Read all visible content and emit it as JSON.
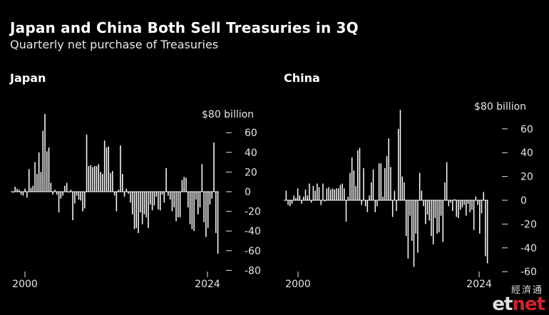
{
  "chart_data": [
    {
      "type": "bar",
      "panel_title": "Japan",
      "unit_label": "$80 billion",
      "y_ticks": [
        "60",
        "40",
        "20",
        "0",
        "-20",
        "-40",
        "-60",
        "-80"
      ],
      "ylim": [
        -80,
        80
      ],
      "x_tick_labels": [
        "2000",
        "2024"
      ],
      "x_range": [
        "2000 Q1",
        "2024 Q3"
      ],
      "values": [
        -1,
        5,
        3,
        2,
        -3,
        -4,
        3,
        -6,
        23,
        4,
        6,
        30,
        18,
        40,
        20,
        62,
        79,
        41,
        45,
        9,
        -3,
        2,
        -3,
        -21,
        -7,
        -4,
        6,
        9,
        -1,
        2,
        -29,
        -12,
        -4,
        -8,
        -9,
        -20,
        -17,
        58,
        26,
        27,
        25,
        26,
        26,
        28,
        20,
        18,
        52,
        45,
        46,
        19,
        21,
        -4,
        -20,
        2,
        47,
        18,
        -5,
        3,
        -2,
        -11,
        -23,
        -38,
        -37,
        -42,
        -21,
        -33,
        -23,
        -26,
        -37,
        -13,
        -19,
        -14,
        -5,
        -18,
        -19,
        -3,
        -11,
        24,
        -4,
        -8,
        -20,
        -16,
        -30,
        -26,
        -26,
        12,
        15,
        14,
        -16,
        -33,
        -38,
        -40,
        -8,
        -23,
        -16,
        28,
        -31,
        -46,
        -37,
        -13,
        -7,
        50,
        -42,
        -63
      ]
    },
    {
      "type": "bar",
      "panel_title": "China",
      "unit_label": "$80 billion",
      "y_ticks": [
        "60",
        "40",
        "20",
        "0",
        "-20",
        "-40",
        "-60"
      ],
      "ylim": [
        -62,
        80
      ],
      "x_tick_labels": [
        "2000",
        "2024"
      ],
      "x_range": [
        "2000 Q1",
        "2024 Q3"
      ],
      "values": [
        8,
        -4,
        -5,
        -3,
        4,
        2,
        10,
        4,
        -3,
        3,
        9,
        4,
        14,
        -2,
        12,
        8,
        14,
        11,
        -4,
        14,
        -1,
        10,
        11,
        9,
        10,
        9,
        10,
        10,
        13,
        14,
        10,
        -18,
        3,
        23,
        36,
        25,
        12,
        42,
        44,
        -4,
        27,
        -5,
        -10,
        4,
        15,
        26,
        -10,
        -5,
        31,
        31,
        3,
        27,
        37,
        52,
        28,
        -14,
        8,
        -9,
        60,
        76,
        20,
        15,
        -30,
        -49,
        -13,
        -34,
        -56,
        -28,
        -44,
        23,
        8,
        -5,
        -20,
        -12,
        -17,
        -30,
        -37,
        -15,
        -28,
        -27,
        -13,
        -35,
        15,
        32,
        -5,
        -2,
        -9,
        1,
        -14,
        -15,
        -8,
        -6,
        -4,
        -13,
        -3,
        -10,
        -8,
        -25,
        3,
        -4,
        -28,
        -11,
        7,
        -47,
        -53
      ]
    }
  ],
  "heading": {
    "title": "Japan and China Both Sell Treasuries in 3Q",
    "subtitle": "Quarterly net purchase of Treasuries"
  },
  "watermark": {
    "cn": "經濟通",
    "en_et": "et",
    "en_net": "net"
  }
}
